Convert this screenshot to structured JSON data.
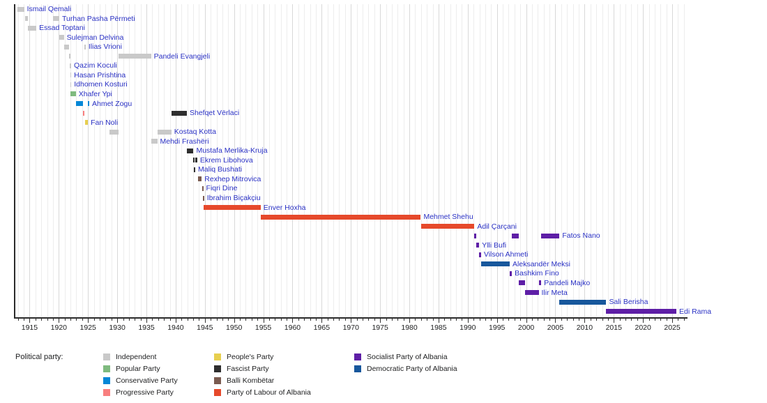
{
  "chart_data": {
    "type": "gantt-timeline",
    "legend_title": "Political party:",
    "x_axis": {
      "unit": "year",
      "range_start": 1912.44,
      "range_end": 2027.5,
      "minor_tick_step": 1,
      "major_tick_step": 5,
      "tick_labels": [
        1915,
        1920,
        1925,
        1930,
        1935,
        1940,
        1945,
        1950,
        1955,
        1960,
        1965,
        1970,
        1975,
        1980,
        1985,
        1990,
        1995,
        2000,
        2005,
        2010,
        2015,
        2020,
        2025
      ],
      "grid": true
    },
    "parties": [
      {
        "id": "independent",
        "label": "Independent",
        "color": "#c9c9c9",
        "legend_column": 0
      },
      {
        "id": "popular",
        "label": "Popular Party",
        "color": "#7fba7f",
        "legend_column": 0
      },
      {
        "id": "conservative",
        "label": "Conservative Party",
        "color": "#0587d7",
        "legend_column": 0
      },
      {
        "id": "progressive",
        "label": "Progressive Party",
        "color": "#f87f7f",
        "legend_column": 0
      },
      {
        "id": "peoples",
        "label": "People's Party",
        "color": "#e7cf4f",
        "legend_column": 1
      },
      {
        "id": "fascist",
        "label": "Fascist Party",
        "color": "#2e2e2e",
        "legend_column": 1
      },
      {
        "id": "balli",
        "label": "Balli Kombëtar",
        "color": "#7a5b50",
        "legend_column": 1
      },
      {
        "id": "labour",
        "label": "Party of Labour of Albania",
        "color": "#e6492b",
        "legend_column": 1
      },
      {
        "id": "socialist",
        "label": "Socialist Party of Albania",
        "color": "#5e1ea6",
        "legend_column": 2
      },
      {
        "id": "democratic",
        "label": "Democratic Party of Albania",
        "color": "#17579c",
        "legend_column": 2
      }
    ],
    "rows": [
      {
        "name": "Ismail Qemali",
        "terms": [
          {
            "party": "independent",
            "start": 1912.92,
            "end": 1914.06
          }
        ]
      },
      {
        "name": "Turhan Pasha Përmeti",
        "terms": [
          {
            "party": "independent",
            "start": 1914.2,
            "end": 1914.67
          },
          {
            "party": "independent",
            "start": 1918.98,
            "end": 1920.08
          }
        ]
      },
      {
        "name": "Essad Toptani",
        "terms": [
          {
            "party": "independent",
            "start": 1914.76,
            "end": 1916.16
          }
        ]
      },
      {
        "name": "Sulejman Delvina",
        "terms": [
          {
            "party": "independent",
            "start": 1920.08,
            "end": 1920.87
          }
        ]
      },
      {
        "name": "Ilias Vrioni",
        "terms": [
          {
            "party": "independent",
            "start": 1920.88,
            "end": 1921.79
          },
          {
            "party": "independent",
            "start": 1924.41,
            "end": 1924.49
          }
        ]
      },
      {
        "name": "Pandeli Evangjeli",
        "terms": [
          {
            "party": "independent",
            "start": 1921.79,
            "end": 1921.93
          },
          {
            "party": "independent",
            "start": 1930.17,
            "end": 1935.79
          }
        ]
      },
      {
        "name": "Qazim Koculi",
        "terms": [
          {
            "party": "independent",
            "start": 1921.92,
            "end": 1921.96
          }
        ]
      },
      {
        "name": "Hasan Prishtina",
        "terms": [
          {
            "party": "independent",
            "start": 1921.93,
            "end": 1921.97
          }
        ]
      },
      {
        "name": "Idhomen Kosturi",
        "terms": [
          {
            "party": "independent",
            "start": 1921.95,
            "end": 1921.99
          }
        ]
      },
      {
        "name": "Xhafer Ypi",
        "terms": [
          {
            "party": "popular",
            "start": 1921.98,
            "end": 1922.92
          }
        ]
      },
      {
        "name": "Ahmet Zogu",
        "terms": [
          {
            "party": "conservative",
            "start": 1922.92,
            "end": 1924.15
          },
          {
            "party": "conservative",
            "start": 1925.02,
            "end": 1925.1
          }
        ]
      },
      {
        "name": "Shefqet Vërlaci",
        "terms": [
          {
            "party": "progressive",
            "start": 1924.17,
            "end": 1924.41
          },
          {
            "party": "fascist",
            "start": 1939.28,
            "end": 1941.92
          }
        ]
      },
      {
        "name": "Fan Noli",
        "terms": [
          {
            "party": "peoples",
            "start": 1924.46,
            "end": 1924.98
          }
        ]
      },
      {
        "name": "Kostaq Kotta",
        "terms": [
          {
            "party": "independent",
            "start": 1928.67,
            "end": 1930.17
          },
          {
            "party": "independent",
            "start": 1936.85,
            "end": 1939.27
          }
        ]
      },
      {
        "name": "Mehdi Frashëri",
        "terms": [
          {
            "party": "independent",
            "start": 1935.8,
            "end": 1936.85
          }
        ]
      },
      {
        "name": "Mustafa Merlika-Kruja",
        "terms": [
          {
            "party": "fascist",
            "start": 1941.92,
            "end": 1943.05
          }
        ]
      },
      {
        "name": "Ekrem Libohova",
        "terms": [
          {
            "party": "fascist",
            "start": 1943.05,
            "end": 1943.12
          },
          {
            "party": "fascist",
            "start": 1943.36,
            "end": 1943.69
          }
        ]
      },
      {
        "name": "Maliq Bushati",
        "terms": [
          {
            "party": "fascist",
            "start": 1943.12,
            "end": 1943.36
          }
        ]
      },
      {
        "name": "Rexhep Mitrovica",
        "terms": [
          {
            "party": "balli",
            "start": 1943.84,
            "end": 1944.46
          }
        ]
      },
      {
        "name": "Fiqri Dine",
        "terms": [
          {
            "party": "balli",
            "start": 1944.54,
            "end": 1944.66
          }
        ]
      },
      {
        "name": "Ibrahim Biçakçiu",
        "terms": [
          {
            "party": "balli",
            "start": 1944.68,
            "end": 1944.82
          }
        ]
      },
      {
        "name": "Enver Hoxha",
        "terms": [
          {
            "party": "labour",
            "start": 1944.81,
            "end": 1954.55
          }
        ]
      },
      {
        "name": "Mehmet Shehu",
        "terms": [
          {
            "party": "labour",
            "start": 1954.55,
            "end": 1981.96
          }
        ]
      },
      {
        "name": "Adil Çarçani",
        "terms": [
          {
            "party": "labour",
            "start": 1982.04,
            "end": 1991.14
          }
        ]
      },
      {
        "name": "Fatos Nano",
        "terms": [
          {
            "party": "socialist",
            "start": 1991.14,
            "end": 1991.42
          },
          {
            "party": "socialist",
            "start": 1997.55,
            "end": 1998.74
          },
          {
            "party": "socialist",
            "start": 2002.58,
            "end": 2005.7
          }
        ]
      },
      {
        "name": "Ylli Bufi",
        "terms": [
          {
            "party": "socialist",
            "start": 1991.42,
            "end": 1991.94
          }
        ]
      },
      {
        "name": "Vilson Ahmeti",
        "terms": [
          {
            "party": "socialist",
            "start": 1991.94,
            "end": 1992.28
          }
        ]
      },
      {
        "name": "Aleksandër Meksi",
        "terms": [
          {
            "party": "democratic",
            "start": 1992.28,
            "end": 1997.19
          }
        ]
      },
      {
        "name": "Bashkim Fino",
        "terms": [
          {
            "party": "socialist",
            "start": 1997.19,
            "end": 1997.56
          }
        ]
      },
      {
        "name": "Pandeli Majko",
        "terms": [
          {
            "party": "socialist",
            "start": 1998.75,
            "end": 1999.82
          },
          {
            "party": "socialist",
            "start": 2002.14,
            "end": 2002.58
          }
        ]
      },
      {
        "name": "Ilir Meta",
        "terms": [
          {
            "party": "socialist",
            "start": 1999.82,
            "end": 2002.14
          }
        ]
      },
      {
        "name": "Sali Berisha",
        "terms": [
          {
            "party": "democratic",
            "start": 2005.7,
            "end": 2013.71
          }
        ]
      },
      {
        "name": "Edi Rama",
        "terms": [
          {
            "party": "socialist",
            "start": 2013.71,
            "end": 2025.71
          }
        ]
      }
    ]
  }
}
